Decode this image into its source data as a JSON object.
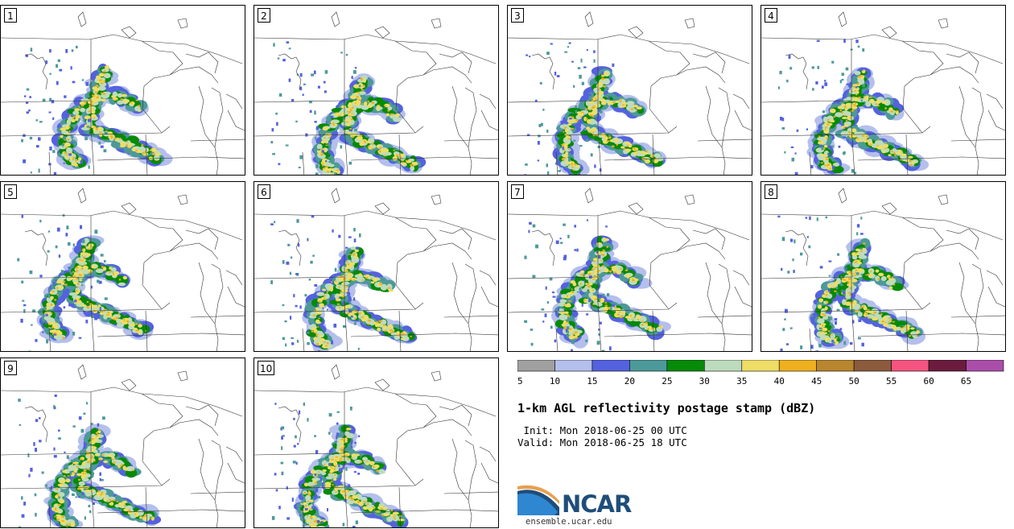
{
  "panels": [
    {
      "label": "1"
    },
    {
      "label": "2"
    },
    {
      "label": "3"
    },
    {
      "label": "4"
    },
    {
      "label": "5"
    },
    {
      "label": "6"
    },
    {
      "label": "7"
    },
    {
      "label": "8"
    },
    {
      "label": "9"
    },
    {
      "label": "10"
    }
  ],
  "colorbar": {
    "ticks": [
      "5",
      "10",
      "15",
      "20",
      "25",
      "30",
      "35",
      "40",
      "45",
      "50",
      "55",
      "60",
      "65"
    ],
    "colors": [
      "#a0a0a0",
      "#b4bfec",
      "#5462de",
      "#4d9999",
      "#078a07",
      "#bddbbd",
      "#eedd66",
      "#eeb01e",
      "#b8862e",
      "#8c5a3c",
      "#f55480",
      "#6b1c3e",
      "#aa4eaa"
    ]
  },
  "title": "1-km AGL reflectivity postage stamp (dBZ)",
  "init": " Init: Mon 2018-06-25 00 UTC",
  "valid": "Valid: Mon 2018-06-25 18 UTC",
  "logo": {
    "text": "NCAR",
    "url": "ensemble.ucar.edu",
    "icon": "ncar-arc-logo"
  }
}
